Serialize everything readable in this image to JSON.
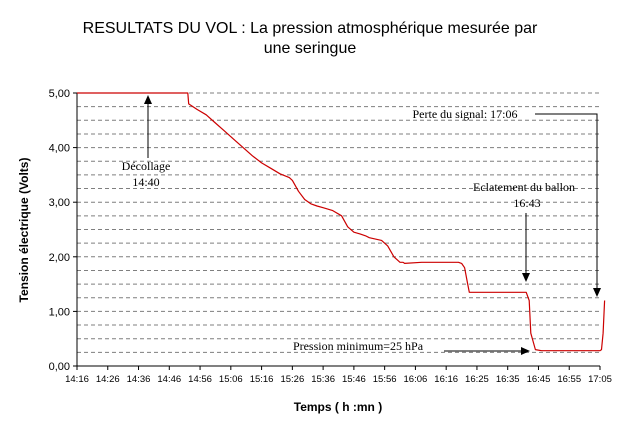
{
  "chart_data": {
    "type": "line",
    "title_lines": [
      "RESULTATS DU VOL : La pression atmosphérique mesurée par",
      "une seringue"
    ],
    "xlabel": "Temps ( h :mn )",
    "ylabel": "Tension électrique (Volts)",
    "ylim": [
      0,
      5
    ],
    "yticks": [
      "0,00",
      "1,00",
      "2,00",
      "3,00",
      "4,00",
      "5,00"
    ],
    "xticks": [
      "14:16",
      "14:26",
      "14:36",
      "14:46",
      "14:56",
      "15:06",
      "15:16",
      "15:26",
      "15:36",
      "15:46",
      "15:56",
      "16:06",
      "16:16",
      "16:25",
      "16:35",
      "16:45",
      "16:55",
      "17:05"
    ],
    "grid": "horizontal-dashed",
    "series": [
      {
        "color": "#cc0000",
        "x": [
          0,
          36,
          36.3,
          39,
          42,
          45,
          48,
          51,
          54,
          57,
          60,
          63,
          66,
          69,
          70,
          72,
          74,
          76,
          78,
          80,
          83,
          86,
          88,
          90,
          92,
          94,
          95,
          99,
          101,
          103,
          105,
          106,
          106.5,
          112,
          124,
          125,
          126,
          127,
          127.5,
          146,
          147,
          147.5,
          149,
          151,
          163,
          164,
          170,
          170.5,
          171,
          171.5
        ],
        "y": [
          5.0,
          5.0,
          4.8,
          4.7,
          4.6,
          4.45,
          4.3,
          4.15,
          4.0,
          3.85,
          3.72,
          3.62,
          3.52,
          3.45,
          3.4,
          3.2,
          3.05,
          2.97,
          2.93,
          2.9,
          2.85,
          2.75,
          2.55,
          2.45,
          2.42,
          2.38,
          2.35,
          2.3,
          2.2,
          2.0,
          1.9,
          1.9,
          1.88,
          1.9,
          1.9,
          1.88,
          1.8,
          1.5,
          1.35,
          1.35,
          1.2,
          0.6,
          0.3,
          0.28,
          0.28,
          0.28,
          0.28,
          0.3,
          0.6,
          1.2
        ]
      }
    ],
    "annotations": [
      {
        "lines": [
          "Décollage",
          "14:40"
        ]
      },
      {
        "lines": [
          "Perte du signal: 17:06"
        ]
      },
      {
        "lines": [
          "Eclatement du ballon",
          "16:43"
        ]
      },
      {
        "lines": [
          "Pression minimum=25 hPa"
        ]
      }
    ]
  }
}
